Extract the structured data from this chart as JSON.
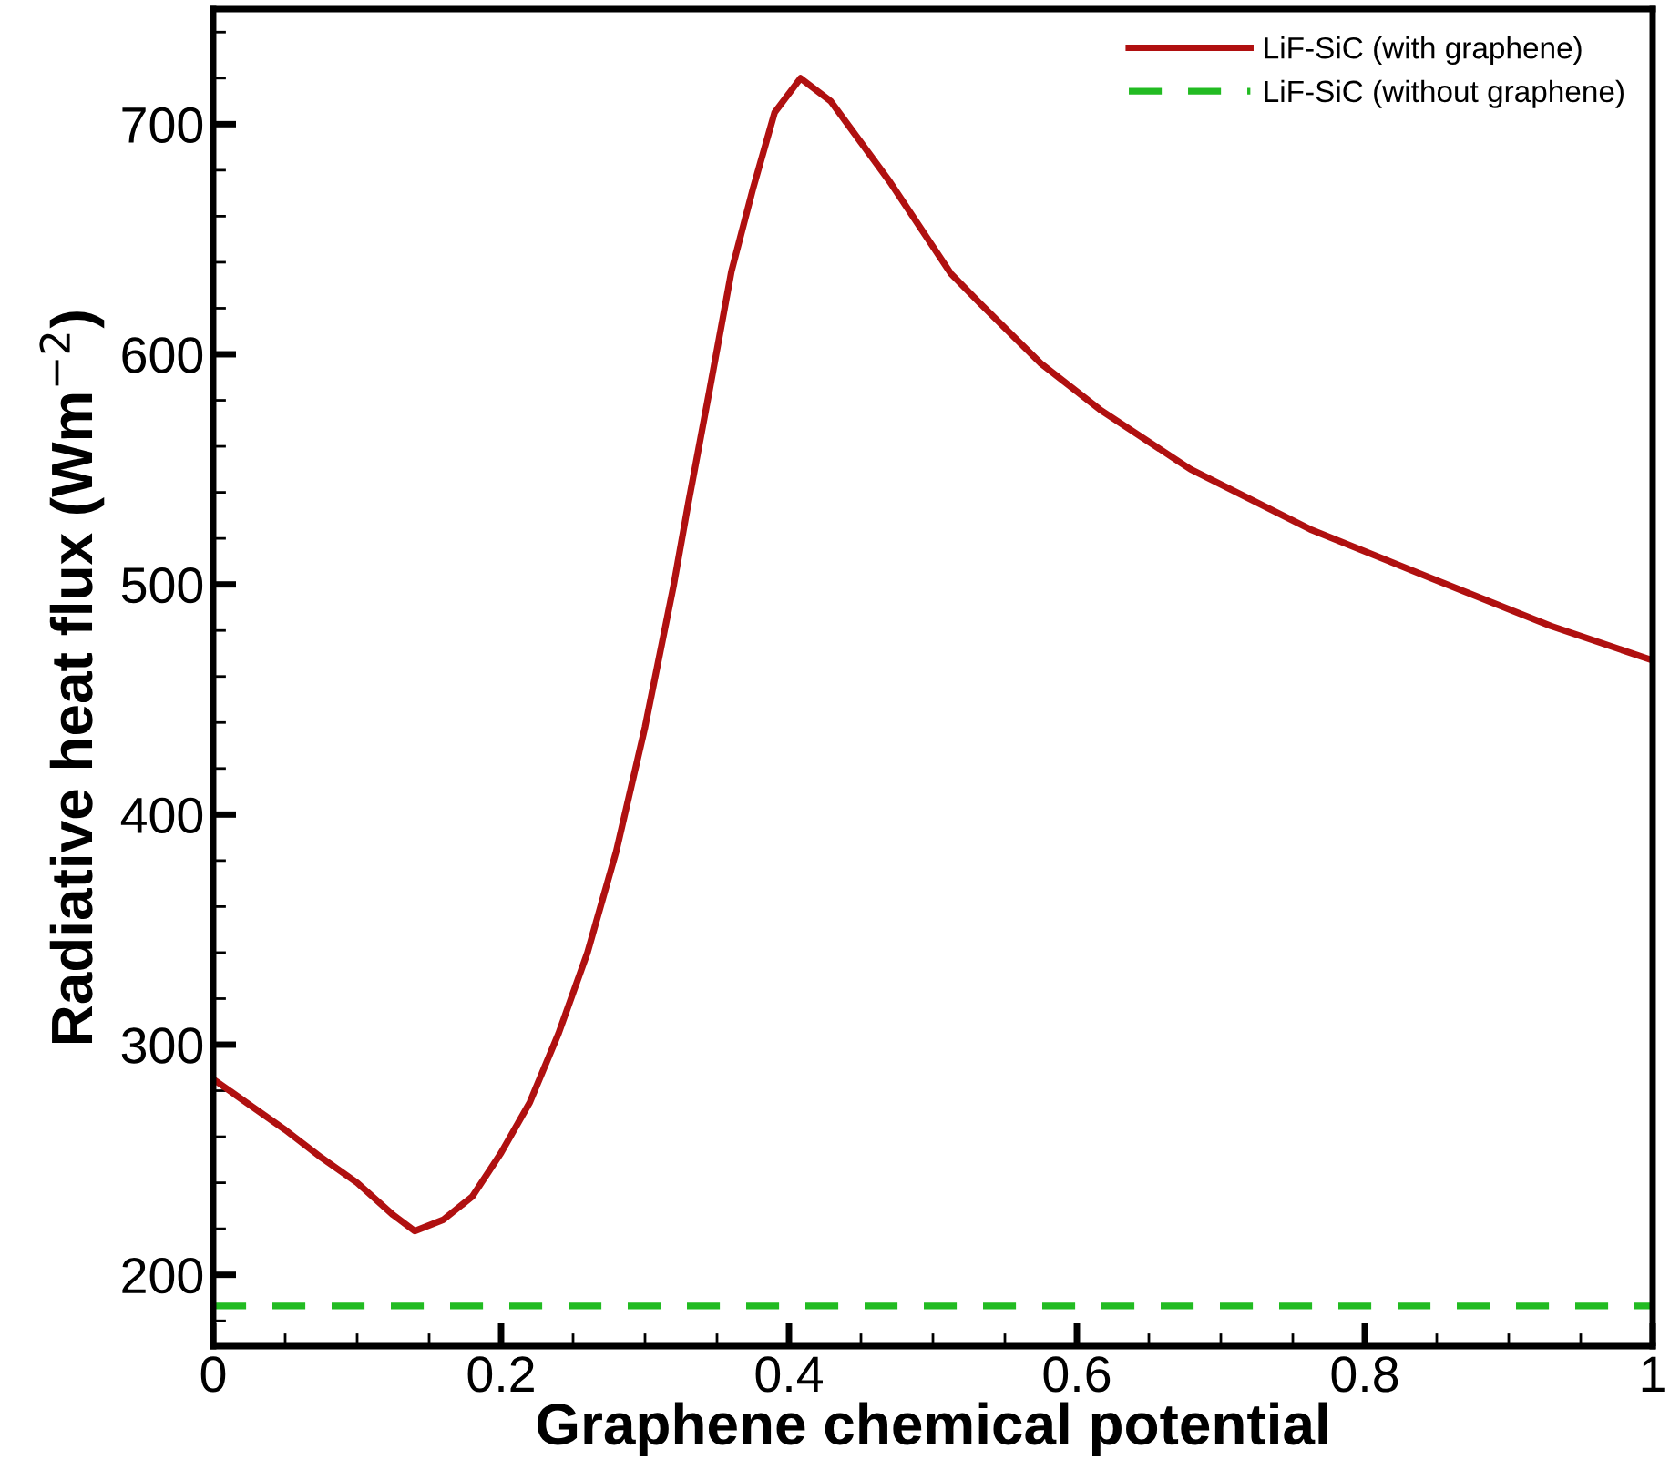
{
  "chart_data": {
    "type": "line",
    "xlabel": "Graphene chemical potential",
    "ylabel": "Radiative heat flux (Wm$^{−2}$)",
    "xlim": [
      0,
      1
    ],
    "ylim": [
      169,
      750
    ],
    "xticks": [
      0,
      0.2,
      0.4,
      0.6,
      0.8,
      1
    ],
    "yticks": [
      200,
      300,
      400,
      500,
      600,
      700
    ],
    "grid": false,
    "legend": "top right",
    "series": [
      {
        "name": "LiF-SiC (with graphene)",
        "color": "#b01010",
        "line_style": "solid",
        "x": [
          0,
          0.025,
          0.05,
          0.075,
          0.1,
          0.125,
          0.14,
          0.16,
          0.18,
          0.2,
          0.22,
          0.24,
          0.26,
          0.28,
          0.3,
          0.32,
          0.33,
          0.345,
          0.36,
          0.375,
          0.39,
          0.408,
          0.429,
          0.47,
          0.5125,
          0.533,
          0.575,
          0.616,
          0.679,
          0.762,
          0.845,
          0.929,
          1.0
        ],
        "values": [
          285,
          274,
          263,
          251,
          240,
          226,
          219,
          224,
          234,
          253,
          275,
          305,
          340,
          384,
          438,
          500,
          535,
          585,
          636,
          672,
          705,
          720,
          710,
          675,
          635,
          622,
          596,
          576,
          550,
          524,
          503,
          482,
          467
        ]
      },
      {
        "name": "LiF-SiC (without graphene)",
        "color": "#22bb22",
        "line_style": "dashed",
        "x": [
          0,
          1
        ],
        "values": [
          186.5,
          186.5
        ]
      }
    ]
  }
}
